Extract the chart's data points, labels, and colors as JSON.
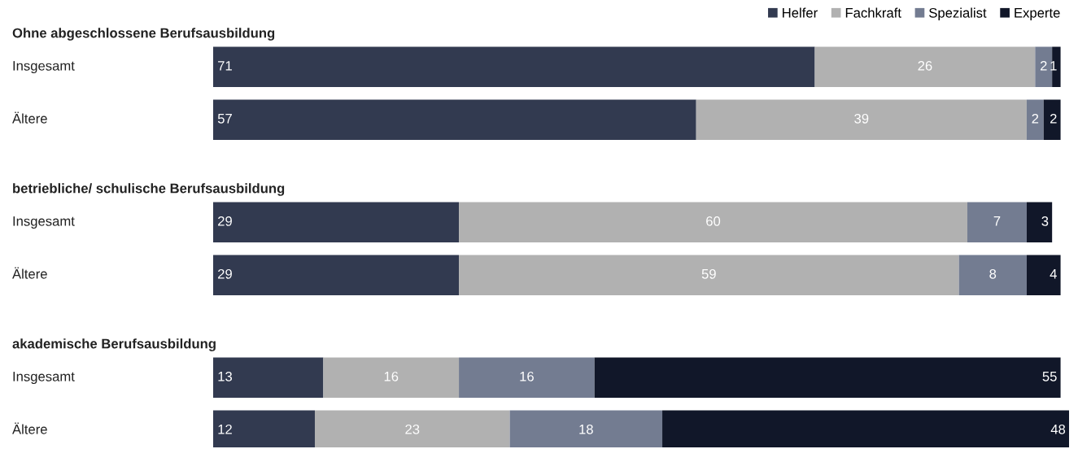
{
  "chart_data": {
    "type": "bar",
    "orientation": "horizontal",
    "stacked": true,
    "data_labels": true,
    "legend": "top right",
    "categories": [
      "Ohne abgeschlossene Berufsausbildung",
      "Insgesamt",
      "Ältere",
      "betriebliche/ schulische Berufsausbildung",
      "Insgesamt",
      "Ältere",
      "akademische Berufsausbildung",
      "Insgesamt",
      "Ältere"
    ],
    "series": [
      {
        "name": "Helfer",
        "color": "#323a50",
        "values": [
          null,
          71,
          57,
          null,
          29,
          29,
          null,
          13,
          12
        ]
      },
      {
        "name": "Fachkraft",
        "color": "#b1b1b1",
        "values": [
          null,
          26,
          39,
          null,
          60,
          59,
          null,
          16,
          23
        ]
      },
      {
        "name": "Spezialist",
        "color": "#737c91",
        "values": [
          null,
          2,
          2,
          null,
          7,
          8,
          null,
          16,
          18
        ]
      },
      {
        "name": "Experte",
        "color": "#111729",
        "values": [
          null,
          1,
          2,
          null,
          3,
          4,
          null,
          55,
          48
        ]
      }
    ]
  }
}
